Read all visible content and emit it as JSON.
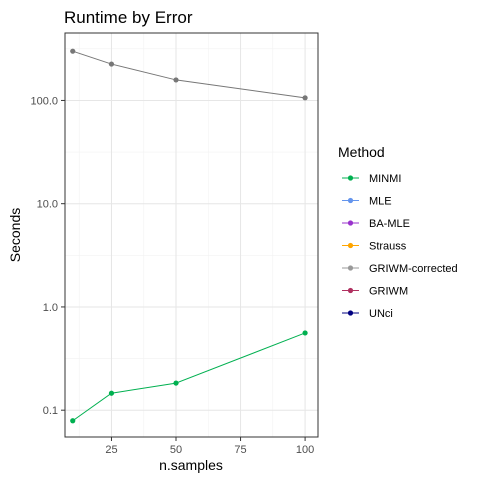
{
  "chart_data": {
    "type": "line",
    "title": "Runtime by Error",
    "xlabel": "n.samples",
    "ylabel": "Seconds",
    "y_scale": "log10",
    "xlim": [
      7,
      105
    ],
    "ylim": [
      0.055,
      450
    ],
    "x_ticks": [
      25,
      50,
      75,
      100
    ],
    "x_tick_labels": [
      "25",
      "50",
      "75",
      "100"
    ],
    "y_ticks": [
      0.1,
      1,
      10,
      100
    ],
    "y_tick_labels": [
      "0.1",
      "1.0",
      "10.0",
      "100.0"
    ],
    "grid": true,
    "legend_position": "right",
    "legend_title": "Method",
    "legend": [
      {
        "name": "MINMI",
        "color": "#00B050"
      },
      {
        "name": "MLE",
        "color": "#6495ED"
      },
      {
        "name": "BA-MLE",
        "color": "#9932CC"
      },
      {
        "name": "Strauss",
        "color": "#FFA500"
      },
      {
        "name": "GRIWM-corrected",
        "color": "#999999"
      },
      {
        "name": "GRIWM",
        "color": "#B03060"
      },
      {
        "name": "UNci",
        "color": "#000080"
      }
    ],
    "series": [
      {
        "name": "GRIWM-corrected",
        "color": "#777777",
        "x": [
          10,
          25,
          50,
          100
        ],
        "y": [
          300,
          225,
          158,
          106
        ]
      },
      {
        "name": "MINMI",
        "color": "#00B050",
        "x": [
          10,
          25,
          50,
          100
        ],
        "y": [
          0.079,
          0.146,
          0.183,
          0.56
        ]
      }
    ]
  }
}
